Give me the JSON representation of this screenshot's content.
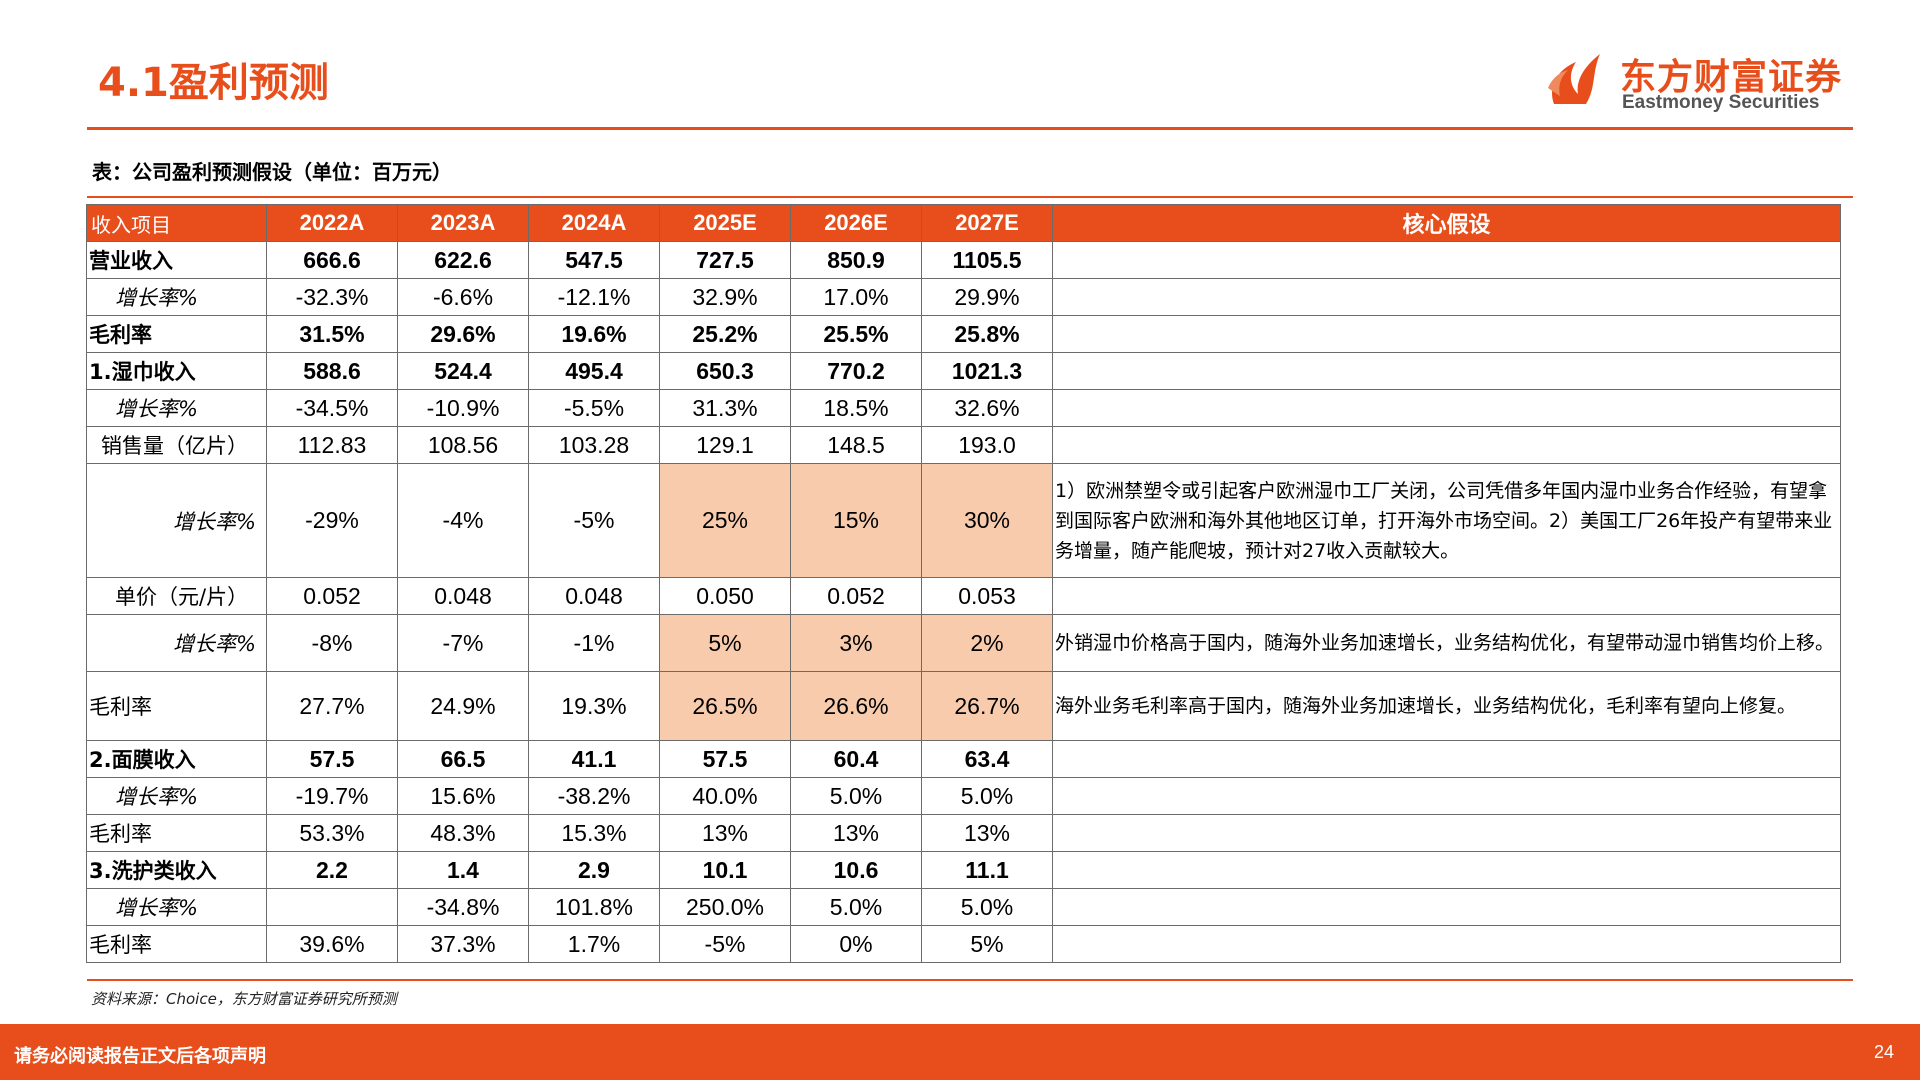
{
  "header": {
    "title": "4.1盈利预测"
  },
  "logo": {
    "cn": "东方财富证券",
    "en": "Eastmoney Securities"
  },
  "caption": "表：公司盈利预测假设（单位：百万元）",
  "table": {
    "columns": [
      "收入项目",
      "2022A",
      "2023A",
      "2024A",
      "2025E",
      "2026E",
      "2027E",
      "核心假设"
    ],
    "rows": [
      {
        "label": "营业收入",
        "values": [
          "666.6",
          "622.6",
          "547.5",
          "727.5",
          "850.9",
          "1105.5"
        ],
        "note": ""
      },
      {
        "label": "增长率%",
        "values": [
          "-32.3%",
          "-6.6%",
          "-12.1%",
          "32.9%",
          "17.0%",
          "29.9%"
        ],
        "note": ""
      },
      {
        "label": "毛利率",
        "values": [
          "31.5%",
          "29.6%",
          "19.6%",
          "25.2%",
          "25.5%",
          "25.8%"
        ],
        "note": ""
      },
      {
        "label": "1.湿巾收入",
        "values": [
          "588.6",
          "524.4",
          "495.4",
          "650.3",
          "770.2",
          "1021.3"
        ],
        "note": ""
      },
      {
        "label": "增长率%",
        "values": [
          "-34.5%",
          "-10.9%",
          "-5.5%",
          "31.3%",
          "18.5%",
          "32.6%"
        ],
        "note": ""
      },
      {
        "label": "销售量（亿片）",
        "values": [
          "112.83",
          "108.56",
          "103.28",
          "129.1",
          "148.5",
          "193.0"
        ],
        "note": ""
      },
      {
        "label": "增长率%",
        "values": [
          "-29%",
          "-4%",
          "-5%",
          "25%",
          "15%",
          "30%"
        ],
        "note": "1）欧洲禁塑令或引起客户欧洲湿巾工厂关闭，公司凭借多年国内湿巾业务合作经验，有望拿到国际客户欧洲和海外其他地区订单，打开海外市场空间。2）美国工厂26年投产有望带来业务增量，随产能爬坡，预计对27收入贡献较大。"
      },
      {
        "label": "单价（元/片）",
        "values": [
          "0.052",
          "0.048",
          "0.048",
          "0.050",
          "0.052",
          "0.053"
        ],
        "note": ""
      },
      {
        "label": "增长率%",
        "values": [
          "-8%",
          "-7%",
          "-1%",
          "5%",
          "3%",
          "2%"
        ],
        "note": "外销湿巾价格高于国内，随海外业务加速增长，业务结构优化，有望带动湿巾销售均价上移。"
      },
      {
        "label": "毛利率",
        "values": [
          "27.7%",
          "24.9%",
          "19.3%",
          "26.5%",
          "26.6%",
          "26.7%"
        ],
        "note": "海外业务毛利率高于国内，随海外业务加速增长，业务结构优化，毛利率有望向上修复。"
      },
      {
        "label": "2.面膜收入",
        "values": [
          "57.5",
          "66.5",
          "41.1",
          "57.5",
          "60.4",
          "63.4"
        ],
        "note": ""
      },
      {
        "label": "增长率%",
        "values": [
          "-19.7%",
          "15.6%",
          "-38.2%",
          "40.0%",
          "5.0%",
          "5.0%"
        ],
        "note": ""
      },
      {
        "label": "毛利率",
        "values": [
          "53.3%",
          "48.3%",
          "15.3%",
          "13%",
          "13%",
          "13%"
        ],
        "note": ""
      },
      {
        "label": "3.洗护类收入",
        "values": [
          "2.2",
          "1.4",
          "2.9",
          "10.1",
          "10.6",
          "11.1"
        ],
        "note": ""
      },
      {
        "label": "增长率%",
        "values": [
          "",
          "-34.8%",
          "101.8%",
          "250.0%",
          "5.0%",
          "5.0%"
        ],
        "note": ""
      },
      {
        "label": "毛利率",
        "values": [
          "39.6%",
          "37.3%",
          "1.7%",
          "-5%",
          "0%",
          "5%"
        ],
        "note": ""
      }
    ]
  },
  "source": "资料来源：Choice，东方财富证券研究所预测",
  "footer": {
    "disclaimer": "请务必阅读报告正文后各项声明",
    "page": "24"
  },
  "colors": {
    "accent": "#e84e1b",
    "highlight": "#f8cbad"
  }
}
